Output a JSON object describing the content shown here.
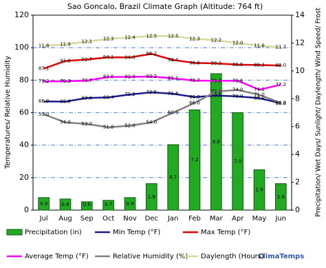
{
  "chart_data": {
    "type": "combo",
    "title": "Sao Goncalo, Brazil Climate Graph (Altitude: 764 ft)",
    "y_label": "Temperatures/ Relative Humidity",
    "y2_label": "Precipitation/ Wet Days/ Sunlight/ Daylength/ Wind Speed/ Frost",
    "brand": "ClimaTemps",
    "categories": [
      "Jul",
      "Aug",
      "Sep",
      "Oct",
      "Nov",
      "Dec",
      "Jan",
      "Feb",
      "Mar",
      "Apr",
      "May",
      "Jun"
    ],
    "ylim": [
      0,
      120
    ],
    "yticks": [
      0,
      20,
      40,
      60,
      80,
      100,
      120
    ],
    "y2lim": [
      0,
      14
    ],
    "y2ticks": [
      0,
      2,
      4,
      6,
      8,
      10,
      12,
      14
    ],
    "grid": true,
    "series": [
      {
        "name": "Precipitation (in)",
        "type": "bar",
        "axis": "y2",
        "color": "#22aa22",
        "values": [
          0.9,
          0.8,
          0.6,
          0.7,
          0.9,
          1.9,
          4.7,
          7.2,
          9.8,
          7.0,
          2.9,
          1.9
        ],
        "value_labels": [
          "0.9",
          "0.8",
          "0.6",
          "0.7",
          "0.9",
          "1.9",
          "4.7",
          "7.2",
          "9.8",
          "7.0",
          "2.9",
          "1.9"
        ]
      },
      {
        "name": "Min Temp (°F)",
        "type": "line",
        "color": "#1a1a8c",
        "values": [
          66.9,
          66.8,
          69.0,
          69.4,
          71.2,
          72.5,
          71.6,
          69.6,
          70.5,
          70.0,
          68.9,
          65.8
        ],
        "value_labels": [
          "66.9",
          "66.8",
          "69.0",
          "69.4",
          "71.2",
          "72.5",
          "71.6",
          "69.6",
          "70.5",
          "70.0",
          "68.9",
          "65.8"
        ]
      },
      {
        "name": "Max Temp (°F)",
        "type": "line",
        "color": "#dd0000",
        "values": [
          87.1,
          91.8,
          92.7,
          94.1,
          94.0,
          96.2,
          92.4,
          90.6,
          90.3,
          89.5,
          89.3,
          89.0
        ],
        "value_labels": [
          "87.1",
          "91.8",
          "92.7",
          "94.1",
          "94.0",
          "96.2",
          "92.4",
          "90.6",
          "90.3",
          "89.5",
          "89.3",
          "89.0"
        ]
      },
      {
        "name": "Average Temp (°F)",
        "type": "line",
        "color": "#ff00ff",
        "values": [
          79.2,
          79.3,
          79.7,
          82.0,
          82.0,
          82.2,
          81.1,
          79.7,
          79.6,
          79.6,
          74.1,
          77.2
        ],
        "value_labels": [
          "79.2",
          "79.3",
          "79.7",
          "82.0",
          "82.0",
          "82.2",
          "81.1",
          "79.7",
          "79.6",
          "79.6",
          "74.1",
          "77.2"
        ]
      },
      {
        "name": "Relative Humidity (%)",
        "type": "line",
        "color": "#808080",
        "values": [
          59.0,
          54.0,
          53.0,
          51.0,
          52.0,
          54.0,
          60.0,
          66.0,
          73.0,
          74.0,
          71.0,
          66.0
        ],
        "value_labels": [
          "59.0",
          "54.0",
          "53.0",
          "51.0",
          "52.0",
          "54.0",
          "60.0",
          "66.0",
          "73.0",
          "74.0",
          "71.0",
          "66.0"
        ]
      },
      {
        "name": "Daylength (Hours)",
        "type": "line",
        "axis": "y2",
        "color": "#d4dc9c",
        "values": [
          11.8,
          11.9,
          12.1,
          12.3,
          12.4,
          12.5,
          12.5,
          12.3,
          12.2,
          12.0,
          11.8,
          11.7
        ],
        "value_labels": [
          "11.8",
          "11.9",
          "12.1",
          "12.3",
          "12.4",
          "12.5",
          "12.5",
          "12.3",
          "12.2",
          "12.0",
          "11.8",
          "11.7"
        ]
      }
    ]
  }
}
